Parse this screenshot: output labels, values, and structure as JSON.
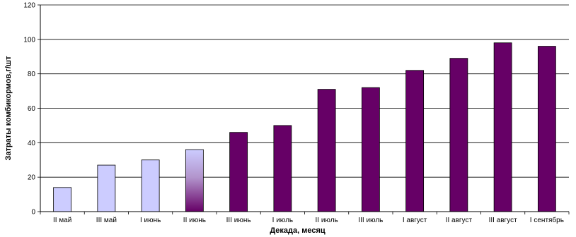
{
  "chart_data": {
    "type": "bar",
    "title": "",
    "xlabel": "Декада, месяц",
    "ylabel": "Затраты комбикормов,г/шт",
    "ylim": [
      0,
      120
    ],
    "yticks": [
      0,
      20,
      40,
      60,
      80,
      100,
      120
    ],
    "categories": [
      "II май",
      "III май",
      "I июнь",
      "II июнь",
      "III июнь",
      "I июль",
      "II июль",
      "III июль",
      "I август",
      "II август",
      "III август",
      "I сентябрь"
    ],
    "values": [
      14,
      27,
      30,
      36,
      46,
      50,
      71,
      72,
      82,
      89,
      98,
      96
    ],
    "bar_styles": [
      "light",
      "light",
      "light",
      "gradient",
      "dark",
      "dark",
      "dark",
      "dark",
      "dark",
      "dark",
      "dark",
      "dark"
    ],
    "grid": true,
    "legend": "none",
    "colors": {
      "light": "#ccccff",
      "dark": "#660066",
      "gridline": "#000000"
    }
  }
}
